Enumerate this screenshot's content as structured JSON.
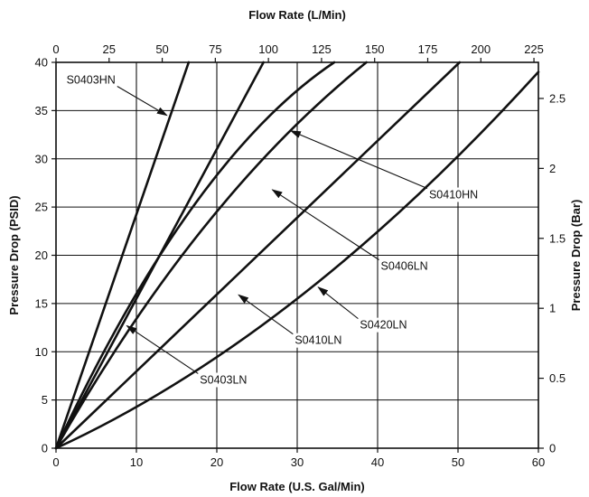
{
  "chart_data": {
    "type": "line",
    "top_axis": {
      "label": "Flow Rate (L/Min)",
      "ticks": [
        "0",
        "25",
        "50",
        "75",
        "100",
        "125",
        "150",
        "175",
        "200",
        "225"
      ],
      "range": [
        0,
        227.1
      ]
    },
    "x_axis": {
      "label": "Flow Rate (U.S. Gal/Min)",
      "ticks": [
        "0",
        "10",
        "20",
        "30",
        "40",
        "50",
        "60"
      ],
      "range": [
        0,
        60
      ]
    },
    "y_axis": {
      "label": "Pressure Drop (PSID)",
      "ticks": [
        "0",
        "5",
        "10",
        "15",
        "20",
        "25",
        "30",
        "35",
        "40"
      ],
      "range": [
        0,
        40
      ]
    },
    "right_axis": {
      "label": "Pressure Drop (Bar)",
      "ticks": [
        "0",
        "0.5",
        "1",
        "1.5",
        "2",
        "2.5"
      ],
      "range": [
        0,
        2.758
      ]
    },
    "grid": true,
    "series": [
      {
        "name": "S0403HN",
        "points": [
          [
            0,
            0
          ],
          [
            16.5,
            40
          ]
        ]
      },
      {
        "name": "S0403LN",
        "points": [
          [
            0,
            0
          ],
          [
            25.8,
            40
          ]
        ]
      },
      {
        "name": "S0410LN",
        "points": [
          [
            0,
            0
          ],
          [
            17,
            25
          ],
          [
            34.6,
            40
          ]
        ]
      },
      {
        "name": "S0406LN",
        "points": [
          [
            0,
            0
          ],
          [
            18.5,
            23
          ],
          [
            38.6,
            40
          ]
        ]
      },
      {
        "name": "S0410HN",
        "points": [
          [
            0,
            0
          ],
          [
            50.2,
            40
          ]
        ]
      },
      {
        "name": "S0420LN",
        "points": [
          [
            0,
            0
          ],
          [
            30,
            15.5
          ],
          [
            60,
            39
          ]
        ]
      }
    ],
    "annotations": [
      {
        "text": "S0403HN",
        "label_at": [
          1.3,
          37.8
        ],
        "arrow_to": [
          13.8,
          34.5
        ]
      },
      {
        "text": "S0410HN",
        "label_at": [
          46.4,
          25.9
        ],
        "arrow_to": [
          29.2,
          32.9
        ]
      },
      {
        "text": "S0406LN",
        "label_at": [
          40.4,
          18.5
        ],
        "arrow_to": [
          26.9,
          26.8
        ]
      },
      {
        "text": "S0420LN",
        "label_at": [
          37.8,
          12.4
        ],
        "arrow_to": [
          32.6,
          16.7
        ]
      },
      {
        "text": "S0410LN",
        "label_at": [
          29.7,
          10.8
        ],
        "arrow_to": [
          22.7,
          15.9
        ]
      },
      {
        "text": "S0403LN",
        "label_at": [
          17.9,
          6.7
        ],
        "arrow_to": [
          8.8,
          12.7
        ]
      }
    ]
  }
}
